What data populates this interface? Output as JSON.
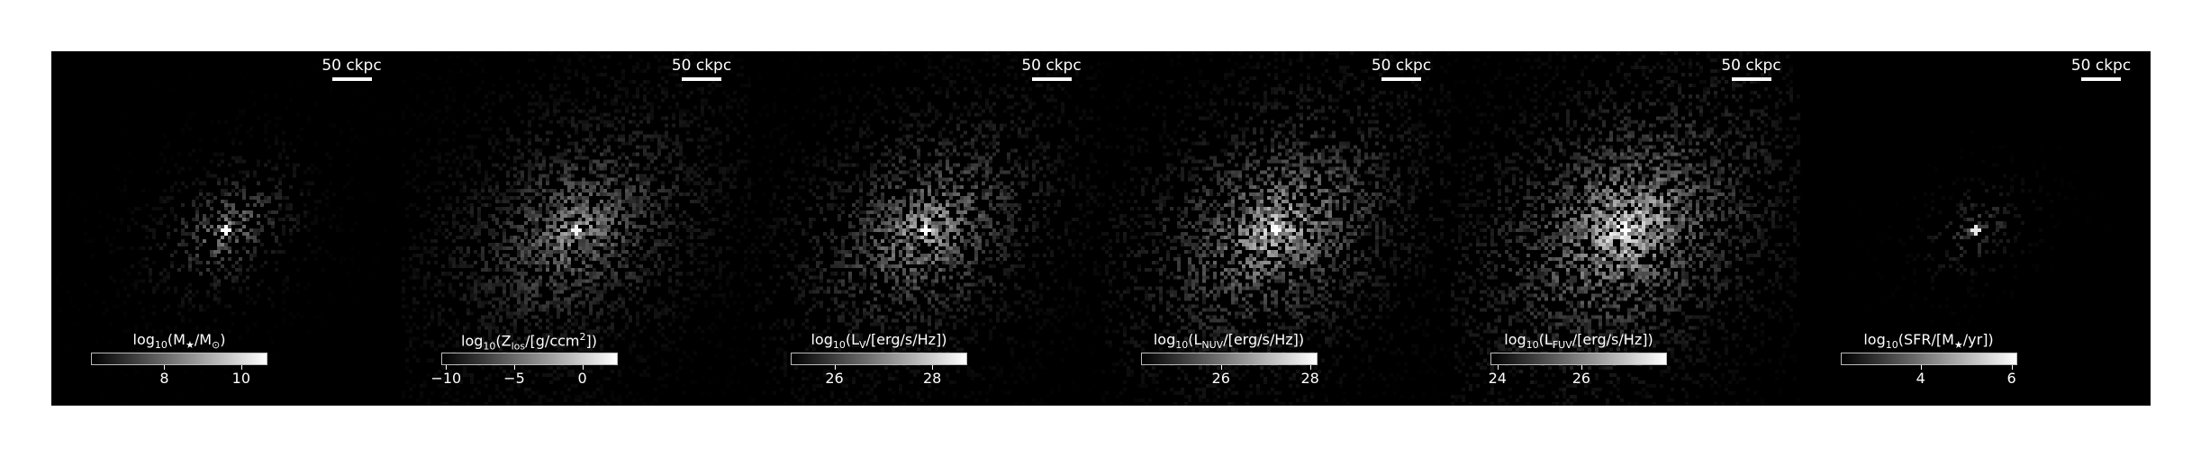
{
  "panels": [
    {
      "id": "stellar-mass",
      "scale_label": "50 ckpc",
      "colorbar": {
        "prefix": "log",
        "prefix_sub": "10",
        "body": "(M",
        "body_sub": "★",
        "suffix": "/M",
        "suffix_sub": "⊙",
        "tail": ")"
      },
      "ticks": [
        "8",
        "10"
      ],
      "tick_frac": [
        0.42,
        0.86
      ],
      "map": {
        "spread": 0.16,
        "brightness": 0.55,
        "density": 0.55,
        "core": 1.0
      }
    },
    {
      "id": "metallicity",
      "scale_label": "50 ckpc",
      "colorbar": {
        "prefix": "log",
        "prefix_sub": "10",
        "body": "(Z",
        "body_sub": "los",
        "suffix": "/[g/ccm",
        "suffix_sup": "2",
        "tail": "])"
      },
      "ticks": [
        "−10",
        "−5",
        "0"
      ],
      "tick_frac": [
        0.03,
        0.42,
        0.81
      ],
      "map": {
        "spread": 0.3,
        "brightness": 0.55,
        "density": 0.85,
        "core": 0.95
      }
    },
    {
      "id": "v-band",
      "scale_label": "50 ckpc",
      "colorbar": {
        "prefix": "log",
        "prefix_sub": "10",
        "body": "(L",
        "body_sub": "V",
        "suffix": "/[erg/s/Hz])",
        "tail": ""
      },
      "ticks": [
        "26",
        "28"
      ],
      "tick_frac": [
        0.25,
        0.81
      ],
      "map": {
        "spread": 0.28,
        "brightness": 0.65,
        "density": 0.75,
        "core": 1.0
      }
    },
    {
      "id": "nuv",
      "scale_label": "50 ckpc",
      "colorbar": {
        "prefix": "log",
        "prefix_sub": "10",
        "body": "(L",
        "body_sub": "NUV",
        "suffix": "/[erg/s/Hz])",
        "tail": ""
      },
      "ticks": [
        "26",
        "28"
      ],
      "tick_frac": [
        0.46,
        0.97
      ],
      "map": {
        "spread": 0.3,
        "brightness": 0.75,
        "density": 0.8,
        "core": 1.0
      }
    },
    {
      "id": "fuv",
      "scale_label": "50 ckpc",
      "colorbar": {
        "prefix": "log",
        "prefix_sub": "10",
        "body": "(L",
        "body_sub": "FUV",
        "suffix": "/[erg/s/Hz])",
        "tail": ""
      },
      "ticks": [
        "24",
        "26"
      ],
      "tick_frac": [
        0.04,
        0.52
      ],
      "map": {
        "spread": 0.32,
        "brightness": 0.82,
        "density": 0.85,
        "core": 1.0
      }
    },
    {
      "id": "sfr",
      "scale_label": "50 ckpc",
      "colorbar": {
        "prefix": "log",
        "prefix_sub": "10",
        "body": "(SFR/[M",
        "body_sub": "★",
        "suffix": "/yr])",
        "tail": ""
      },
      "ticks": [
        "4",
        "6"
      ],
      "tick_frac": [
        0.46,
        0.98
      ],
      "map": {
        "spread": 0.12,
        "brightness": 0.35,
        "density": 0.35,
        "core": 0.9
      }
    }
  ]
}
